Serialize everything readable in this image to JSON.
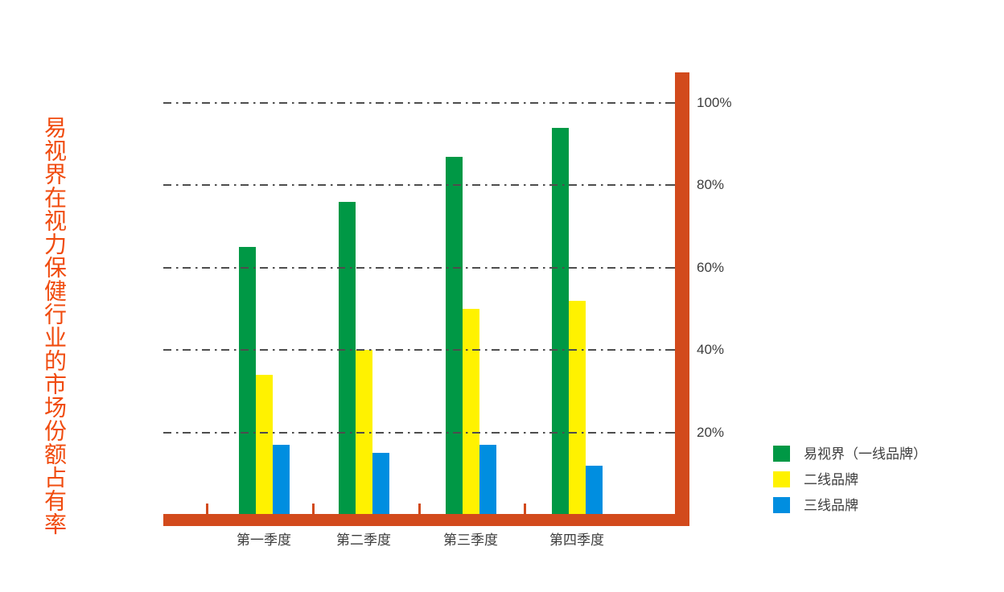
{
  "title": "易视界在视力保健行业的市场份额占有率",
  "colors": {
    "title_text": "#F04B0E",
    "axis": "#D24A1C",
    "gridline": "#4D4D4D",
    "label_text": "#3D3D3D",
    "background": "#FFFFFF"
  },
  "chart_data": {
    "type": "bar",
    "title": "易视界在视力保健行业的市场份额占有率",
    "categories": [
      "第一季度",
      "第二季度",
      "第三季度",
      "第四季度"
    ],
    "series": [
      {
        "name": "易视界（一线品牌）",
        "color": "#009845",
        "values": [
          65,
          76,
          87,
          94
        ]
      },
      {
        "name": "二线品牌",
        "color": "#FFF200",
        "values": [
          34,
          40,
          50,
          52
        ]
      },
      {
        "name": "三线品牌",
        "color": "#008EE0",
        "values": [
          17,
          15,
          17,
          12
        ]
      }
    ],
    "xlabel": "",
    "ylabel": "",
    "y_ticks": [
      "100%",
      "80%",
      "60%",
      "40%",
      "20%"
    ],
    "y_tick_values": [
      100,
      80,
      60,
      40,
      20
    ],
    "ylim": [
      0,
      107
    ],
    "grid": "horizontal dash-dot, drawn over bars",
    "legend_position": "right-bottom",
    "bar_order_note": "bars contiguous within each quarter group"
  }
}
